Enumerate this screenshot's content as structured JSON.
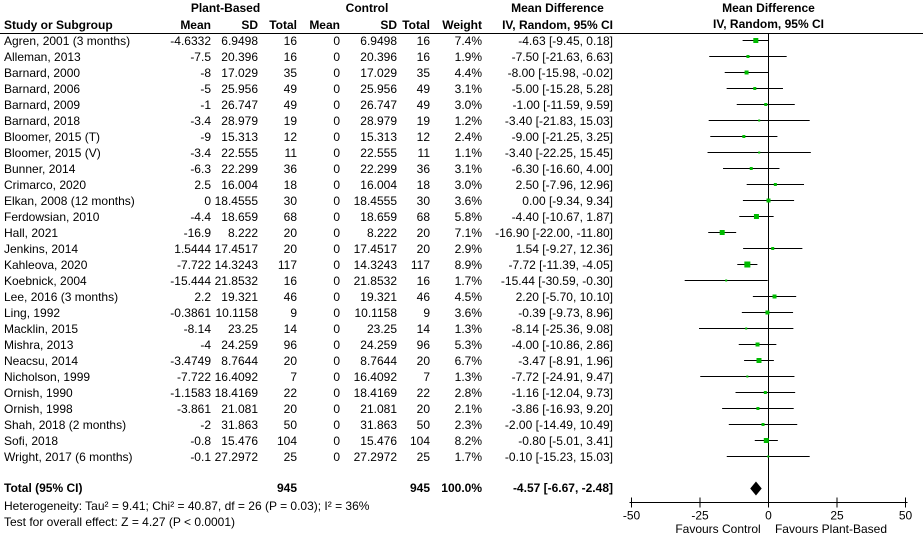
{
  "colors": {
    "square": "#00bb00",
    "diamond": "#000000",
    "line": "#000000",
    "text": "#000000",
    "background": "#ffffff"
  },
  "header": {
    "group_plant": "Plant-Based",
    "group_control": "Control",
    "md_text_title": "Mean Difference",
    "md_text_sub": "IV, Random, 95% CI",
    "md_plot_title": "Mean Difference",
    "md_plot_sub": "IV, Random, 95% CI",
    "col_study": "Study or Subgroup",
    "col_mean": "Mean",
    "col_sd": "SD",
    "col_total": "Total",
    "col_weight": "Weight"
  },
  "chart_data": {
    "type": "forest",
    "title": "Mean Difference, IV, Random, 95% CI",
    "x_axis": {
      "min": -50,
      "max": 50,
      "ticks": [
        -50,
        -25,
        0,
        25,
        50
      ],
      "label_left": "Favours Control",
      "label_right": "Favours Plant-Based"
    },
    "studies": [
      {
        "label": "Agren, 2001 (3 months)",
        "mean": "-4.6332",
        "sd": "6.9498",
        "total": "16",
        "c_mean": "0",
        "c_sd": "6.9498",
        "c_total": "16",
        "weight": "7.4%",
        "ci": "-4.63 [-9.45, 0.18]",
        "est": -4.63,
        "lo": -9.45,
        "hi": 0.18
      },
      {
        "label": "Alleman, 2013",
        "mean": "-7.5",
        "sd": "20.396",
        "total": "16",
        "c_mean": "0",
        "c_sd": "20.396",
        "c_total": "16",
        "weight": "1.9%",
        "ci": "-7.50 [-21.63, 6.63]",
        "est": -7.5,
        "lo": -21.63,
        "hi": 6.63
      },
      {
        "label": "Barnard, 2000",
        "mean": "-8",
        "sd": "17.029",
        "total": "35",
        "c_mean": "0",
        "c_sd": "17.029",
        "c_total": "35",
        "weight": "4.4%",
        "ci": "-8.00 [-15.98, -0.02]",
        "est": -8,
        "lo": -15.98,
        "hi": -0.02
      },
      {
        "label": "Barnard, 2006",
        "mean": "-5",
        "sd": "25.956",
        "total": "49",
        "c_mean": "0",
        "c_sd": "25.956",
        "c_total": "49",
        "weight": "3.1%",
        "ci": "-5.00 [-15.28, 5.28]",
        "est": -5,
        "lo": -15.28,
        "hi": 5.28
      },
      {
        "label": "Barnard, 2009",
        "mean": "-1",
        "sd": "26.747",
        "total": "49",
        "c_mean": "0",
        "c_sd": "26.747",
        "c_total": "49",
        "weight": "3.0%",
        "ci": "-1.00 [-11.59, 9.59]",
        "est": -1,
        "lo": -11.59,
        "hi": 9.59
      },
      {
        "label": "Barnard, 2018",
        "mean": "-3.4",
        "sd": "28.979",
        "total": "19",
        "c_mean": "0",
        "c_sd": "28.979",
        "c_total": "19",
        "weight": "1.2%",
        "ci": "-3.40 [-21.83, 15.03]",
        "est": -3.4,
        "lo": -21.83,
        "hi": 15.03
      },
      {
        "label": "Bloomer, 2015 (T)",
        "mean": "-9",
        "sd": "15.313",
        "total": "12",
        "c_mean": "0",
        "c_sd": "15.313",
        "c_total": "12",
        "weight": "2.4%",
        "ci": "-9.00 [-21.25, 3.25]",
        "est": -9,
        "lo": -21.25,
        "hi": 3.25
      },
      {
        "label": "Bloomer, 2015 (V)",
        "mean": "-3.4",
        "sd": "22.555",
        "total": "11",
        "c_mean": "0",
        "c_sd": "22.555",
        "c_total": "11",
        "weight": "1.1%",
        "ci": "-3.40 [-22.25, 15.45]",
        "est": -3.4,
        "lo": -22.25,
        "hi": 15.45
      },
      {
        "label": "Bunner, 2014",
        "mean": "-6.3",
        "sd": "22.299",
        "total": "36",
        "c_mean": "0",
        "c_sd": "22.299",
        "c_total": "36",
        "weight": "3.1%",
        "ci": "-6.30 [-16.60, 4.00]",
        "est": -6.3,
        "lo": -16.6,
        "hi": 4
      },
      {
        "label": "Crimarco, 2020",
        "mean": "2.5",
        "sd": "16.004",
        "total": "18",
        "c_mean": "0",
        "c_sd": "16.004",
        "c_total": "18",
        "weight": "3.0%",
        "ci": "2.50 [-7.96, 12.96]",
        "est": 2.5,
        "lo": -7.96,
        "hi": 12.96
      },
      {
        "label": "Elkan, 2008 (12 months)",
        "mean": "0",
        "sd": "18.4555",
        "total": "30",
        "c_mean": "0",
        "c_sd": "18.4555",
        "c_total": "30",
        "weight": "3.6%",
        "ci": "0.00 [-9.34, 9.34]",
        "est": 0,
        "lo": -9.34,
        "hi": 9.34
      },
      {
        "label": "Ferdowsian, 2010",
        "mean": "-4.4",
        "sd": "18.659",
        "total": "68",
        "c_mean": "0",
        "c_sd": "18.659",
        "c_total": "68",
        "weight": "5.8%",
        "ci": "-4.40 [-10.67, 1.87]",
        "est": -4.4,
        "lo": -10.67,
        "hi": 1.87
      },
      {
        "label": "Hall, 2021",
        "mean": "-16.9",
        "sd": "8.222",
        "total": "20",
        "c_mean": "0",
        "c_sd": "8.222",
        "c_total": "20",
        "weight": "7.1%",
        "ci": "-16.90 [-22.00, -11.80]",
        "est": -16.9,
        "lo": -22,
        "hi": -11.8
      },
      {
        "label": "Jenkins, 2014",
        "mean": "1.5444",
        "sd": "17.4517",
        "total": "20",
        "c_mean": "0",
        "c_sd": "17.4517",
        "c_total": "20",
        "weight": "2.9%",
        "ci": "1.54 [-9.27, 12.36]",
        "est": 1.54,
        "lo": -9.27,
        "hi": 12.36
      },
      {
        "label": "Kahleova, 2020",
        "mean": "-7.722",
        "sd": "14.3243",
        "total": "117",
        "c_mean": "0",
        "c_sd": "14.3243",
        "c_total": "117",
        "weight": "8.9%",
        "ci": "-7.72 [-11.39, -4.05]",
        "est": -7.72,
        "lo": -11.39,
        "hi": -4.05
      },
      {
        "label": "Koebnick, 2004",
        "mean": "-15.444",
        "sd": "21.8532",
        "total": "16",
        "c_mean": "0",
        "c_sd": "21.8532",
        "c_total": "16",
        "weight": "1.7%",
        "ci": "-15.44 [-30.59, -0.30]",
        "est": -15.44,
        "lo": -30.59,
        "hi": -0.3
      },
      {
        "label": "Lee, 2016 (3 months)",
        "mean": "2.2",
        "sd": "19.321",
        "total": "46",
        "c_mean": "0",
        "c_sd": "19.321",
        "c_total": "46",
        "weight": "4.5%",
        "ci": "2.20 [-5.70, 10.10]",
        "est": 2.2,
        "lo": -5.7,
        "hi": 10.1
      },
      {
        "label": "Ling, 1992",
        "mean": "-0.3861",
        "sd": "10.1158",
        "total": "9",
        "c_mean": "0",
        "c_sd": "10.1158",
        "c_total": "9",
        "weight": "3.6%",
        "ci": "-0.39 [-9.73, 8.96]",
        "est": -0.39,
        "lo": -9.73,
        "hi": 8.96
      },
      {
        "label": "Macklin, 2015",
        "mean": "-8.14",
        "sd": "23.25",
        "total": "14",
        "c_mean": "0",
        "c_sd": "23.25",
        "c_total": "14",
        "weight": "1.3%",
        "ci": "-8.14 [-25.36, 9.08]",
        "est": -8.14,
        "lo": -25.36,
        "hi": 9.08
      },
      {
        "label": "Mishra, 2013",
        "mean": "-4",
        "sd": "24.259",
        "total": "96",
        "c_mean": "0",
        "c_sd": "24.259",
        "c_total": "96",
        "weight": "5.3%",
        "ci": "-4.00 [-10.86, 2.86]",
        "est": -4,
        "lo": -10.86,
        "hi": 2.86
      },
      {
        "label": "Neacsu, 2014",
        "mean": "-3.4749",
        "sd": "8.7644",
        "total": "20",
        "c_mean": "0",
        "c_sd": "8.7644",
        "c_total": "20",
        "weight": "6.7%",
        "ci": "-3.47 [-8.91, 1.96]",
        "est": -3.47,
        "lo": -8.91,
        "hi": 1.96
      },
      {
        "label": "Nicholson, 1999",
        "mean": "-7.722",
        "sd": "16.4092",
        "total": "7",
        "c_mean": "0",
        "c_sd": "16.4092",
        "c_total": "7",
        "weight": "1.3%",
        "ci": "-7.72 [-24.91, 9.47]",
        "est": -7.72,
        "lo": -24.91,
        "hi": 9.47
      },
      {
        "label": "Ornish, 1990",
        "mean": "-1.1583",
        "sd": "18.4169",
        "total": "22",
        "c_mean": "0",
        "c_sd": "18.4169",
        "c_total": "22",
        "weight": "2.8%",
        "ci": "-1.16 [-12.04, 9.73]",
        "est": -1.16,
        "lo": -12.04,
        "hi": 9.73
      },
      {
        "label": "Ornish, 1998",
        "mean": "-3.861",
        "sd": "21.081",
        "total": "20",
        "c_mean": "0",
        "c_sd": "21.081",
        "c_total": "20",
        "weight": "2.1%",
        "ci": "-3.86 [-16.93, 9.20]",
        "est": -3.86,
        "lo": -16.93,
        "hi": 9.2
      },
      {
        "label": "Shah, 2018 (2 months)",
        "mean": "-2",
        "sd": "31.863",
        "total": "50",
        "c_mean": "0",
        "c_sd": "31.863",
        "c_total": "50",
        "weight": "2.3%",
        "ci": "-2.00 [-14.49, 10.49]",
        "est": -2,
        "lo": -14.49,
        "hi": 10.49
      },
      {
        "label": "Sofi, 2018",
        "mean": "-0.8",
        "sd": "15.476",
        "total": "104",
        "c_mean": "0",
        "c_sd": "15.476",
        "c_total": "104",
        "weight": "8.2%",
        "ci": "-0.80 [-5.01, 3.41]",
        "est": -0.8,
        "lo": -5.01,
        "hi": 3.41
      },
      {
        "label": "Wright, 2017 (6 months)",
        "mean": "-0.1",
        "sd": "27.2972",
        "total": "25",
        "c_mean": "0",
        "c_sd": "27.2972",
        "c_total": "25",
        "weight": "1.7%",
        "ci": "-0.10 [-15.23, 15.03]",
        "est": -0.1,
        "lo": -15.23,
        "hi": 15.03
      }
    ],
    "total": {
      "label": "Total (95% CI)",
      "total": "945",
      "c_total": "945",
      "weight": "100.0%",
      "ci": "-4.57 [-6.67, -2.48]",
      "est": -4.57,
      "lo": -6.67,
      "hi": -2.48
    }
  },
  "footer": {
    "heterogeneity": "Heterogeneity: Tau² = 9.41; Chi² = 40.87, df = 26 (P = 0.03); I² = 36%",
    "overall_effect": "Test for overall effect: Z = 4.27 (P < 0.0001)"
  }
}
